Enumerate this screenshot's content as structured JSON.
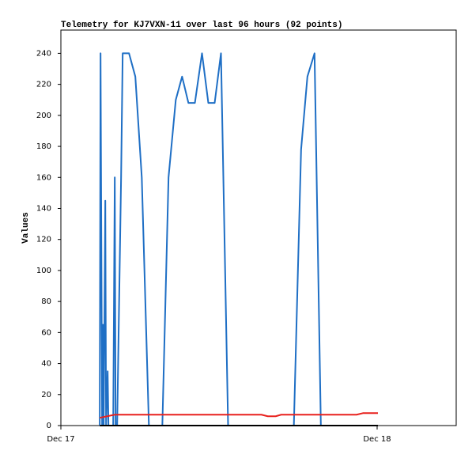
{
  "chart_data": {
    "type": "line",
    "title": "Telemetry for KJ7VXN-11 over last 96 hours (92 points)",
    "y_label": "Values",
    "xlim": [
      0,
      30
    ],
    "xticks": [
      {
        "value": 0,
        "label": "Dec 17"
      },
      {
        "value": 24,
        "label": "Dec 18"
      }
    ],
    "ylim": [
      0,
      255
    ],
    "yticks": [
      0,
      20,
      40,
      60,
      80,
      100,
      120,
      140,
      160,
      180,
      200,
      220,
      240
    ],
    "grid": false,
    "series": [
      {
        "color": "#1f6fc5",
        "x": [
          2.95,
          3.01,
          3.13,
          3.19,
          3.25,
          3.37,
          3.43,
          3.55,
          3.61,
          3.97,
          4.09,
          4.15,
          4.27,
          4.57,
          4.69,
          5.17,
          5.65,
          6.14,
          6.68,
          7.7,
          8.17,
          8.72,
          9.2,
          9.68,
          10.17,
          10.71,
          11.19,
          11.67,
          12.15,
          12.69,
          17.68,
          18.23,
          18.71,
          19.25,
          19.73
        ],
        "values": [
          0,
          240,
          0,
          65,
          0,
          145,
          0,
          35,
          0,
          0,
          160,
          0,
          0,
          160,
          240,
          240,
          225,
          160,
          0,
          0,
          160,
          210,
          225,
          208,
          208,
          240,
          208,
          208,
          240,
          0,
          0,
          178,
          225,
          240,
          0
        ]
      },
      {
        "color": "#e8211d",
        "x": [
          2.95,
          4.09,
          15.22,
          15.7,
          16.3,
          16.72,
          22.44,
          22.92,
          24.06
        ],
        "values": [
          5,
          7,
          7,
          6,
          6,
          7,
          7,
          8,
          8
        ]
      },
      {
        "color": "#000000",
        "x": [
          2.95,
          24.06
        ],
        "values": [
          0,
          0
        ]
      }
    ]
  }
}
